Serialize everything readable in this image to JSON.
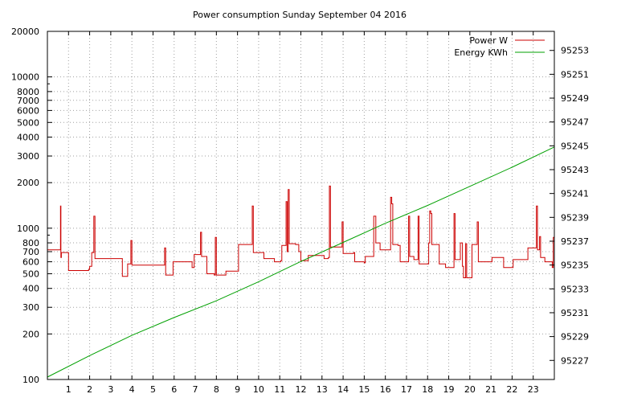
{
  "chart_data": {
    "type": "line",
    "title": "Power consumption Sunday September 04 2016",
    "xlabel": "",
    "ylabel": "",
    "y2label": "",
    "x_ticks": [
      1,
      2,
      3,
      4,
      5,
      6,
      7,
      8,
      9,
      10,
      11,
      12,
      13,
      14,
      15,
      16,
      17,
      18,
      19,
      20,
      21,
      22,
      23
    ],
    "xlim": [
      0,
      24
    ],
    "y_scale": "log",
    "ylim": [
      100,
      20000
    ],
    "y_ticks": [
      100,
      200,
      300,
      400,
      500,
      600,
      700,
      800,
      1000,
      2000,
      3000,
      4000,
      5000,
      6000,
      7000,
      8000,
      10000,
      20000
    ],
    "y2lim": [
      95225.4,
      95254.6
    ],
    "y2_ticks": [
      95227,
      95229,
      95231,
      95233,
      95235,
      95237,
      95239,
      95241,
      95243,
      95245,
      95247,
      95249,
      95251,
      95253
    ],
    "grid": true,
    "legend_position": "top-right",
    "colors": {
      "power": "#cc0000",
      "energy": "#00a000"
    },
    "series": [
      {
        "name": "Power W",
        "axis": "y",
        "points": [
          [
            0.0,
            720
          ],
          [
            0.6,
            720
          ],
          [
            0.62,
            1400
          ],
          [
            0.64,
            640
          ],
          [
            0.66,
            690
          ],
          [
            0.95,
            690
          ],
          [
            1.0,
            525
          ],
          [
            1.95,
            535
          ],
          [
            2.0,
            560
          ],
          [
            2.1,
            690
          ],
          [
            2.2,
            1200
          ],
          [
            2.25,
            630
          ],
          [
            3.5,
            630
          ],
          [
            3.55,
            480
          ],
          [
            3.75,
            480
          ],
          [
            3.8,
            580
          ],
          [
            3.95,
            830
          ],
          [
            4.0,
            570
          ],
          [
            5.5,
            570
          ],
          [
            5.55,
            740
          ],
          [
            5.6,
            490
          ],
          [
            5.9,
            490
          ],
          [
            5.95,
            600
          ],
          [
            6.8,
            600
          ],
          [
            6.85,
            550
          ],
          [
            6.95,
            670
          ],
          [
            7.25,
            940
          ],
          [
            7.3,
            650
          ],
          [
            7.5,
            650
          ],
          [
            7.55,
            500
          ],
          [
            7.9,
            490
          ],
          [
            7.95,
            870
          ],
          [
            8.0,
            490
          ],
          [
            8.4,
            490
          ],
          [
            8.45,
            520
          ],
          [
            9.0,
            520
          ],
          [
            9.05,
            780
          ],
          [
            9.6,
            780
          ],
          [
            9.7,
            1400
          ],
          [
            9.75,
            690
          ],
          [
            10.2,
            690
          ],
          [
            10.25,
            630
          ],
          [
            10.7,
            630
          ],
          [
            10.75,
            600
          ],
          [
            11.05,
            610
          ],
          [
            11.1,
            770
          ],
          [
            11.3,
            1500
          ],
          [
            11.35,
            700
          ],
          [
            11.4,
            1800
          ],
          [
            11.45,
            790
          ],
          [
            11.7,
            790
          ],
          [
            11.75,
            780
          ],
          [
            11.9,
            700
          ],
          [
            12.0,
            610
          ],
          [
            12.3,
            610
          ],
          [
            12.35,
            660
          ],
          [
            13.0,
            660
          ],
          [
            13.1,
            630
          ],
          [
            13.3,
            640
          ],
          [
            13.35,
            1900
          ],
          [
            13.4,
            750
          ],
          [
            13.9,
            750
          ],
          [
            13.95,
            1100
          ],
          [
            14.0,
            680
          ],
          [
            14.5,
            690
          ],
          [
            14.55,
            600
          ],
          [
            15.0,
            590
          ],
          [
            15.05,
            650
          ],
          [
            15.4,
            650
          ],
          [
            15.45,
            1200
          ],
          [
            15.55,
            800
          ],
          [
            15.7,
            800
          ],
          [
            15.75,
            720
          ],
          [
            16.2,
            720
          ],
          [
            16.25,
            1600
          ],
          [
            16.3,
            1450
          ],
          [
            16.35,
            780
          ],
          [
            16.6,
            770
          ],
          [
            16.65,
            770
          ],
          [
            16.7,
            600
          ],
          [
            17.0,
            600
          ],
          [
            17.1,
            1200
          ],
          [
            17.15,
            650
          ],
          [
            17.3,
            650
          ],
          [
            17.35,
            620
          ],
          [
            17.5,
            620
          ],
          [
            17.55,
            1200
          ],
          [
            17.6,
            580
          ],
          [
            18.0,
            580
          ],
          [
            18.05,
            800
          ],
          [
            18.1,
            1300
          ],
          [
            18.15,
            1250
          ],
          [
            18.2,
            780
          ],
          [
            18.5,
            780
          ],
          [
            18.55,
            580
          ],
          [
            18.8,
            580
          ],
          [
            18.85,
            550
          ],
          [
            19.2,
            550
          ],
          [
            19.25,
            1250
          ],
          [
            19.3,
            620
          ],
          [
            19.5,
            620
          ],
          [
            19.55,
            800
          ],
          [
            19.65,
            560
          ],
          [
            19.7,
            470
          ],
          [
            19.8,
            790
          ],
          [
            19.85,
            470
          ],
          [
            20.0,
            470
          ],
          [
            20.1,
            780
          ],
          [
            20.3,
            780
          ],
          [
            20.35,
            1100
          ],
          [
            20.4,
            600
          ],
          [
            21.0,
            600
          ],
          [
            21.05,
            640
          ],
          [
            21.5,
            640
          ],
          [
            21.6,
            550
          ],
          [
            22.0,
            550
          ],
          [
            22.05,
            620
          ],
          [
            22.7,
            620
          ],
          [
            22.75,
            740
          ],
          [
            23.1,
            740
          ],
          [
            23.15,
            1400
          ],
          [
            23.2,
            720
          ],
          [
            23.3,
            880
          ],
          [
            23.35,
            640
          ],
          [
            23.5,
            640
          ],
          [
            23.55,
            600
          ],
          [
            23.9,
            550
          ],
          [
            23.95,
            870
          ],
          [
            24.0,
            620
          ]
        ]
      },
      {
        "name": "Energy KWh",
        "axis": "y2",
        "points": [
          [
            0,
            95225.6
          ],
          [
            2,
            95227.4
          ],
          [
            4,
            95229.1
          ],
          [
            6,
            95230.6
          ],
          [
            8,
            95232.0
          ],
          [
            10,
            95233.6
          ],
          [
            12,
            95235.3
          ],
          [
            14,
            95236.9
          ],
          [
            16,
            95238.5
          ],
          [
            18,
            95240.0
          ],
          [
            20,
            95241.6
          ],
          [
            22,
            95243.2
          ],
          [
            24,
            95244.9
          ]
        ]
      }
    ]
  }
}
